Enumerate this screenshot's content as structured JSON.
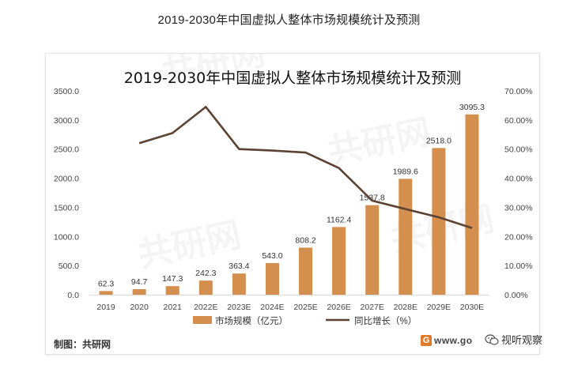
{
  "page": {
    "title": "2019-2030年中国虚拟人整体市场规模统计及预测",
    "source": "制图：共研网",
    "url": "www.go",
    "wechat": "视听观察"
  },
  "chart_data": {
    "type": "bar+line",
    "title": "2019-2030年中国虚拟人整体市场规模统计及预测",
    "categories": [
      "2019",
      "2020",
      "2021",
      "2022E",
      "2023E",
      "2024E",
      "2025E",
      "2026E",
      "2027E",
      "2028E",
      "2029E",
      "2030E"
    ],
    "series": [
      {
        "name": "市场规模（亿元）",
        "type": "bar",
        "axis": "left",
        "color": "#d48e4e",
        "values": [
          62.3,
          94.7,
          147.3,
          242.3,
          363.4,
          543.0,
          808.2,
          1162.4,
          1537.8,
          1989.6,
          2518.0,
          3095.3
        ],
        "labels": [
          "62.3",
          "94.7",
          "147.3",
          "242.3",
          "363.4",
          "543.0",
          "808.2",
          "1162.4",
          "1537.8",
          "1989.6",
          "2518.0",
          "3095.3"
        ]
      },
      {
        "name": "同比增长（%）",
        "type": "line",
        "axis": "right",
        "color": "#5c4232",
        "values": [
          null,
          52.0,
          55.5,
          64.5,
          50.0,
          49.5,
          48.8,
          43.5,
          32.3,
          29.4,
          26.6,
          22.9
        ]
      }
    ],
    "y_left": {
      "min": 0,
      "max": 3500,
      "ticks": [
        "0.0",
        "500.0",
        "1000.0",
        "1500.0",
        "2000.0",
        "2500.0",
        "3000.0",
        "3500.0"
      ]
    },
    "y_right": {
      "min": 0,
      "max": 70,
      "ticks": [
        "0.00%",
        "10.00%",
        "20.00%",
        "30.00%",
        "40.00%",
        "50.00%",
        "60.00%",
        "70.00%"
      ]
    },
    "legend": {
      "position": "bottom",
      "bar_label": "市场规模（亿元）",
      "line_label": "同比增长（%）"
    },
    "watermark": "共研网",
    "colors": {
      "bar": "#d48e4e",
      "line": "#5c4232",
      "axis_text": "#444444"
    }
  }
}
